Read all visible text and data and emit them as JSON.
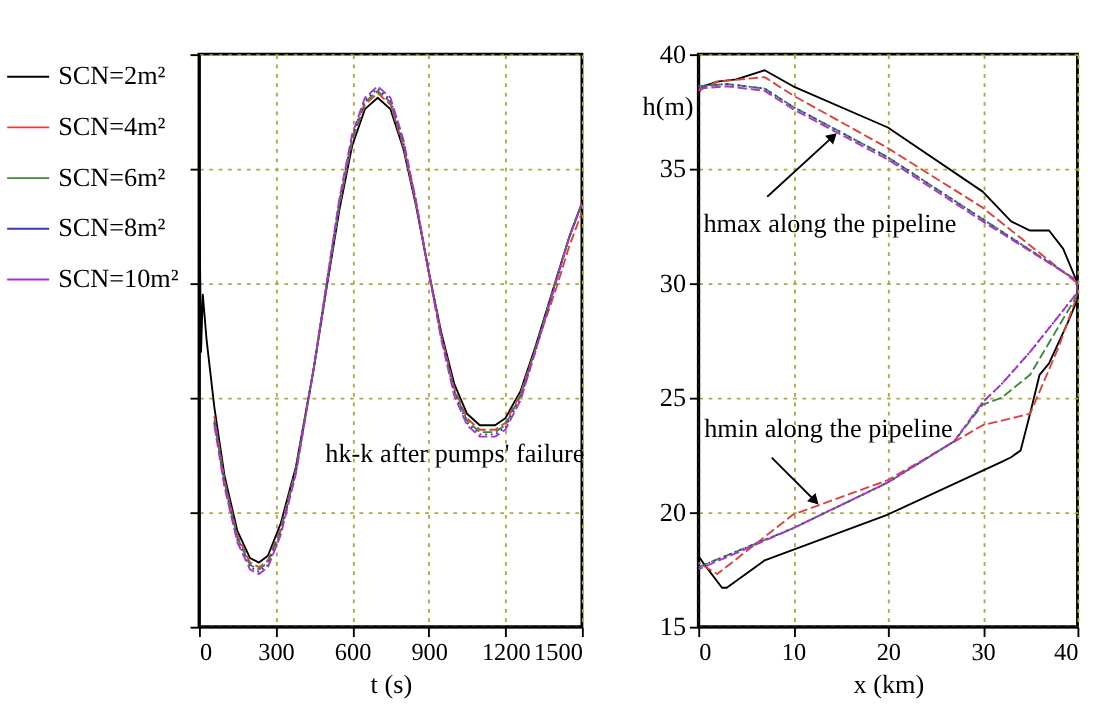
{
  "chart_data": [
    {
      "type": "line",
      "xlabel": "t (s)",
      "xlim": [
        0,
        1500
      ],
      "xticks": [
        0,
        300,
        600,
        900,
        1200,
        1500
      ],
      "ylim": [
        15,
        40
      ],
      "yticks": [
        15,
        20,
        25,
        30,
        35,
        40
      ],
      "tick_labels": "x",
      "grid": true,
      "legend": "left",
      "x": [
        0,
        8,
        15,
        30,
        60,
        100,
        150,
        200,
        235,
        270,
        320,
        380,
        450,
        500,
        550,
        600,
        650,
        700,
        750,
        800,
        850,
        900,
        950,
        1000,
        1050,
        1100,
        1160,
        1200,
        1260,
        1320,
        1400,
        1450,
        1500
      ],
      "series": [
        {
          "name": "SCN=2m²",
          "color": "#000000",
          "line_style": "solid",
          "values": [
            35.2,
            27.0,
            29.5,
            27.5,
            24.6,
            21.6,
            19.2,
            18.0,
            17.8,
            18.1,
            19.5,
            22.0,
            26.3,
            29.8,
            33.2,
            36.0,
            37.6,
            38.1,
            37.6,
            35.9,
            33.4,
            30.5,
            27.8,
            25.6,
            24.3,
            23.8,
            23.8,
            24.1,
            25.3,
            27.3,
            30.2,
            32.0,
            33.5
          ]
        },
        {
          "name": "SCN=4m²",
          "color": "#e0403a",
          "line_style": "dashed",
          "values": [
            null,
            null,
            null,
            null,
            24.2,
            21.4,
            19.0,
            17.8,
            17.6,
            17.9,
            19.3,
            21.9,
            26.3,
            29.9,
            33.4,
            36.2,
            37.8,
            38.3,
            37.8,
            36.0,
            33.5,
            30.5,
            27.7,
            25.4,
            24.1,
            23.6,
            23.6,
            23.9,
            25.2,
            27.2,
            29.8,
            31.6,
            33.1
          ]
        },
        {
          "name": "SCN=6m²",
          "color": "#3a8a3a",
          "line_style": "dashed",
          "values": [
            null,
            null,
            null,
            null,
            24.0,
            21.3,
            18.9,
            17.7,
            17.5,
            17.8,
            19.2,
            21.8,
            26.3,
            29.9,
            33.5,
            36.3,
            37.9,
            38.4,
            37.9,
            36.1,
            33.5,
            30.5,
            27.6,
            25.3,
            24.0,
            23.5,
            23.5,
            23.8,
            25.1,
            27.2,
            30.2,
            32.0,
            33.5
          ]
        },
        {
          "name": "SCN=8m²",
          "color": "#3838c8",
          "line_style": "dotted",
          "values": [
            null,
            null,
            null,
            null,
            23.9,
            21.2,
            18.8,
            17.6,
            17.4,
            17.7,
            19.1,
            21.8,
            26.3,
            30.0,
            33.6,
            36.4,
            38.0,
            38.5,
            38.0,
            36.2,
            33.6,
            30.5,
            27.6,
            25.2,
            23.9,
            23.4,
            23.4,
            23.7,
            25.0,
            27.1,
            30.1,
            32.0,
            33.5
          ]
        },
        {
          "name": "SCN=10m²",
          "color": "#b030d0",
          "line_style": "dashed",
          "values": [
            null,
            null,
            null,
            null,
            23.8,
            21.1,
            18.7,
            17.5,
            17.3,
            17.6,
            19.0,
            21.7,
            26.3,
            30.0,
            33.7,
            36.5,
            38.1,
            38.6,
            38.1,
            36.3,
            33.6,
            30.5,
            27.5,
            25.1,
            23.8,
            23.3,
            23.3,
            23.6,
            24.9,
            27.1,
            30.1,
            32.0,
            33.5
          ]
        }
      ],
      "annotations": [
        "hk-k after pumps' failure"
      ]
    },
    {
      "type": "line",
      "xlabel": "x (km)",
      "ylabel": "h(m)",
      "xlim": [
        0,
        40
      ],
      "xticks": [
        0,
        10,
        20,
        30,
        40
      ],
      "ylim": [
        15,
        40
      ],
      "yticks": [
        15,
        20,
        25,
        30,
        35,
        40
      ],
      "grid": true,
      "series": [
        {
          "color": "#000000",
          "line_style": "solid",
          "x": [
            0,
            0.5,
            2,
            4,
            7,
            10,
            20,
            30,
            33,
            35,
            37,
            38.5,
            40,
            40,
            39,
            37,
            36,
            35,
            34,
            33,
            32,
            20,
            7,
            6,
            3,
            2.5,
            0.5,
            0
          ],
          "values": [
            38.3,
            38.6,
            38.8,
            38.9,
            39.3,
            38.6,
            36.8,
            34.0,
            32.7,
            32.3,
            32.3,
            31.5,
            30.0,
            29.3,
            28.3,
            26.5,
            26.0,
            24.3,
            22.7,
            22.4,
            22.2,
            19.9,
            17.9,
            17.6,
            16.7,
            16.7,
            17.8,
            18.1
          ]
        },
        {
          "color": "#e0403a",
          "line_style": "dashed",
          "x": [
            0,
            2,
            7,
            10,
            20,
            30,
            40,
            40,
            38,
            35,
            30,
            20,
            10,
            2,
            0
          ],
          "values": [
            38.4,
            38.8,
            39.0,
            38.2,
            35.9,
            33.3,
            30.0,
            29.5,
            27.2,
            24.3,
            23.8,
            21.4,
            19.9,
            17.3,
            17.8
          ]
        },
        {
          "color": "#3a8a3a",
          "line_style": "dashed",
          "x": [
            0,
            3,
            7,
            10,
            20,
            30,
            40,
            40,
            35,
            32,
            30,
            27,
            20,
            10,
            0
          ],
          "values": [
            38.6,
            38.7,
            38.5,
            37.7,
            35.5,
            32.8,
            30.1,
            29.5,
            26.0,
            25.0,
            24.7,
            23.1,
            21.3,
            19.3,
            17.6
          ]
        },
        {
          "color": "#3838c8",
          "line_style": "dotted",
          "x": [
            0,
            3,
            7,
            10,
            20,
            30,
            40,
            40,
            35,
            32,
            30,
            27,
            20,
            10,
            0
          ],
          "values": [
            38.6,
            38.7,
            38.5,
            37.7,
            35.5,
            32.8,
            30.1,
            29.6,
            27.0,
            25.6,
            24.8,
            23.1,
            21.3,
            19.3,
            17.6
          ]
        },
        {
          "color": "#b030d0",
          "line_style": "dashed",
          "x": [
            0,
            3,
            7,
            10,
            20,
            30,
            40,
            40,
            35,
            32,
            30,
            27,
            20,
            10,
            0
          ],
          "values": [
            38.5,
            38.6,
            38.4,
            37.6,
            35.4,
            32.7,
            30.1,
            29.6,
            27.0,
            25.6,
            24.8,
            23.1,
            21.3,
            19.3,
            17.5
          ]
        }
      ],
      "annotations": [
        {
          "text": "hmax along the pipeline",
          "x": 14.2,
          "y": 36.4
        },
        {
          "text": "hmin along the pipeline",
          "x": 12.3,
          "y": 20.5
        }
      ]
    }
  ]
}
